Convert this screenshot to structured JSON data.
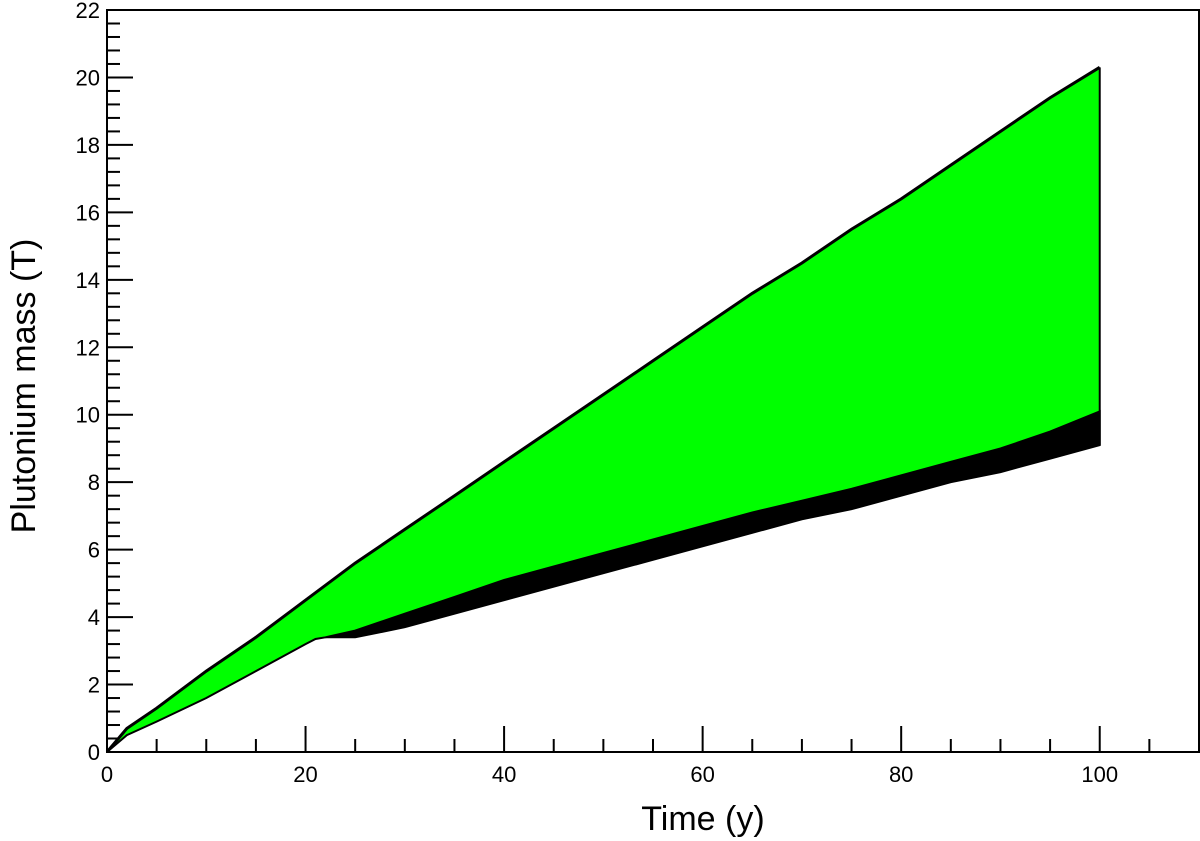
{
  "chart_data": {
    "type": "area",
    "title": "",
    "xlabel": "Time (y)",
    "ylabel": "Plutonium mass (T)",
    "xlim": [
      0,
      110
    ],
    "ylim": [
      0,
      22
    ],
    "x_ticks": [
      0,
      20,
      40,
      60,
      80,
      100
    ],
    "y_ticks": [
      0,
      2,
      4,
      6,
      8,
      10,
      12,
      14,
      16,
      18,
      20,
      22
    ],
    "grid": false,
    "legend": "none",
    "colors": {
      "fill": "#00ff00",
      "edge": "#000000",
      "axis": "#000000"
    },
    "series": [
      {
        "role": "upper-envelope",
        "x": [
          0,
          2,
          5,
          10,
          15,
          20,
          25,
          30,
          35,
          40,
          45,
          50,
          55,
          60,
          65,
          70,
          75,
          80,
          85,
          90,
          95,
          100
        ],
        "values": [
          0,
          0.7,
          1.3,
          2.4,
          3.4,
          4.5,
          5.6,
          6.6,
          7.6,
          8.6,
          9.6,
          10.6,
          11.6,
          12.6,
          13.6,
          14.5,
          15.5,
          16.4,
          17.4,
          18.4,
          19.4,
          20.3
        ]
      },
      {
        "role": "lower-envelope",
        "x": [
          0,
          2,
          5,
          10,
          15,
          20,
          21,
          22,
          25,
          30,
          35,
          40,
          45,
          50,
          55,
          60,
          65,
          70,
          75,
          80,
          85,
          90,
          95,
          100
        ],
        "values": [
          0,
          0.5,
          0.9,
          1.6,
          2.4,
          3.2,
          3.35,
          3.4,
          3.6,
          4.1,
          4.6,
          5.1,
          5.5,
          5.9,
          6.3,
          6.7,
          7.1,
          7.45,
          7.8,
          8.2,
          8.6,
          9.0,
          9.5,
          10.1
        ]
      },
      {
        "role": "lower-band-bottom",
        "x": [
          22,
          25,
          30,
          35,
          40,
          45,
          50,
          55,
          60,
          65,
          70,
          75,
          80,
          85,
          90,
          95,
          100
        ],
        "values": [
          3.4,
          3.4,
          3.7,
          4.1,
          4.5,
          4.9,
          5.3,
          5.7,
          6.1,
          6.5,
          6.9,
          7.2,
          7.6,
          8.0,
          8.3,
          8.7,
          9.1
        ]
      }
    ]
  }
}
